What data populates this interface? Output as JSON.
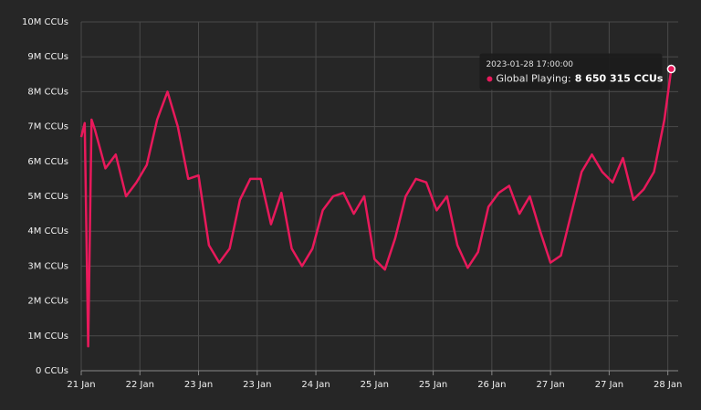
{
  "chart_data": {
    "type": "line",
    "x": [
      "2023-01-21 14:00:00",
      "2023-01-21 15:00:00",
      "2023-01-21 16:00:00",
      "2023-01-21 17:00:00",
      "2023-01-21 18:00:00",
      "2023-01-21 21:00:00",
      "2023-01-22 00:00:00",
      "2023-01-22 03:00:00",
      "2023-01-22 06:00:00",
      "2023-01-22 09:00:00",
      "2023-01-22 12:00:00",
      "2023-01-22 15:00:00",
      "2023-01-22 18:00:00",
      "2023-01-22 21:00:00",
      "2023-01-23 00:00:00",
      "2023-01-23 03:00:00",
      "2023-01-23 06:00:00",
      "2023-01-23 09:00:00",
      "2023-01-23 12:00:00",
      "2023-01-23 15:00:00",
      "2023-01-23 18:00:00",
      "2023-01-23 21:00:00",
      "2023-01-24 00:00:00",
      "2023-01-24 03:00:00",
      "2023-01-24 06:00:00",
      "2023-01-24 09:00:00",
      "2023-01-24 12:00:00",
      "2023-01-24 15:00:00",
      "2023-01-24 18:00:00",
      "2023-01-24 21:00:00",
      "2023-01-25 00:00:00",
      "2023-01-25 03:00:00",
      "2023-01-25 06:00:00",
      "2023-01-25 09:00:00",
      "2023-01-25 12:00:00",
      "2023-01-25 15:00:00",
      "2023-01-25 18:00:00",
      "2023-01-25 21:00:00",
      "2023-01-26 00:00:00",
      "2023-01-26 03:00:00",
      "2023-01-26 06:00:00",
      "2023-01-26 09:00:00",
      "2023-01-26 12:00:00",
      "2023-01-26 15:00:00",
      "2023-01-26 18:00:00",
      "2023-01-26 21:00:00",
      "2023-01-27 00:00:00",
      "2023-01-27 03:00:00",
      "2023-01-27 06:00:00",
      "2023-01-27 09:00:00",
      "2023-01-27 12:00:00",
      "2023-01-27 15:00:00",
      "2023-01-27 18:00:00",
      "2023-01-27 21:00:00",
      "2023-01-28 00:00:00",
      "2023-01-28 03:00:00",
      "2023-01-28 06:00:00",
      "2023-01-28 09:00:00",
      "2023-01-28 12:00:00",
      "2023-01-28 15:00:00",
      "2023-01-28 17:00:00"
    ],
    "series": [
      {
        "color": "#e8195b",
        "values": [
          6700000,
          7100000,
          700000,
          7200000,
          6900000,
          5800000,
          6200000,
          5000000,
          5400000,
          5900000,
          7200000,
          8000000,
          7000000,
          5500000,
          5600000,
          3600000,
          3100000,
          3500000,
          4900000,
          5500000,
          5500000,
          4200000,
          5100000,
          3500000,
          3000000,
          3500000,
          4600000,
          5000000,
          5100000,
          4500000,
          5000000,
          3200000,
          2900000,
          3800000,
          5000000,
          5500000,
          5400000,
          4600000,
          5000000,
          3600000,
          2950000,
          3400000,
          4700000,
          5100000,
          5300000,
          4500000,
          5000000,
          4000000,
          3100000,
          3300000,
          4500000,
          5700000,
          6200000,
          5700000,
          5400000,
          6100000,
          4900000,
          5200000,
          5700000,
          7200000,
          8650315
        ]
      }
    ],
    "xlim": [
      "2023-01-21 14:00:00",
      "2023-01-28 19:00:00"
    ],
    "xticks": [
      {
        "value": "2023-01-21 14:00:00",
        "label": "21 Jan"
      },
      {
        "value": "2023-01-22 07:00:00",
        "label": "22 Jan"
      },
      {
        "value": "2023-01-23 00:00:00",
        "label": "23 Jan"
      },
      {
        "value": "2023-01-23 17:00:00",
        "label": "23 Jan"
      },
      {
        "value": "2023-01-24 10:00:00",
        "label": "24 Jan"
      },
      {
        "value": "2023-01-25 03:00:00",
        "label": "25 Jan"
      },
      {
        "value": "2023-01-25 20:00:00",
        "label": "25 Jan"
      },
      {
        "value": "2023-01-26 13:00:00",
        "label": "26 Jan"
      },
      {
        "value": "2023-01-27 06:00:00",
        "label": "27 Jan"
      },
      {
        "value": "2023-01-27 23:00:00",
        "label": "27 Jan"
      },
      {
        "value": "2023-01-28 16:00:00",
        "label": "28 Jan"
      }
    ],
    "ylim": [
      0,
      10000000
    ],
    "yticks": [
      {
        "value": 0,
        "label": "0 CCUs"
      },
      {
        "value": 1000000,
        "label": "1M CCUs"
      },
      {
        "value": 2000000,
        "label": "2M CCUs"
      },
      {
        "value": 3000000,
        "label": "3M CCUs"
      },
      {
        "value": 4000000,
        "label": "4M CCUs"
      },
      {
        "value": 5000000,
        "label": "5M CCUs"
      },
      {
        "value": 6000000,
        "label": "6M CCUs"
      },
      {
        "value": 7000000,
        "label": "7M CCUs"
      },
      {
        "value": 8000000,
        "label": "8M CCUs"
      },
      {
        "value": 9000000,
        "label": "9M CCUs"
      },
      {
        "value": 10000000,
        "label": "10M CCUs"
      }
    ],
    "grid": true,
    "tooltip": {
      "label": "Global Playing:",
      "value_label": "8 650 315 CCUs"
    }
  }
}
